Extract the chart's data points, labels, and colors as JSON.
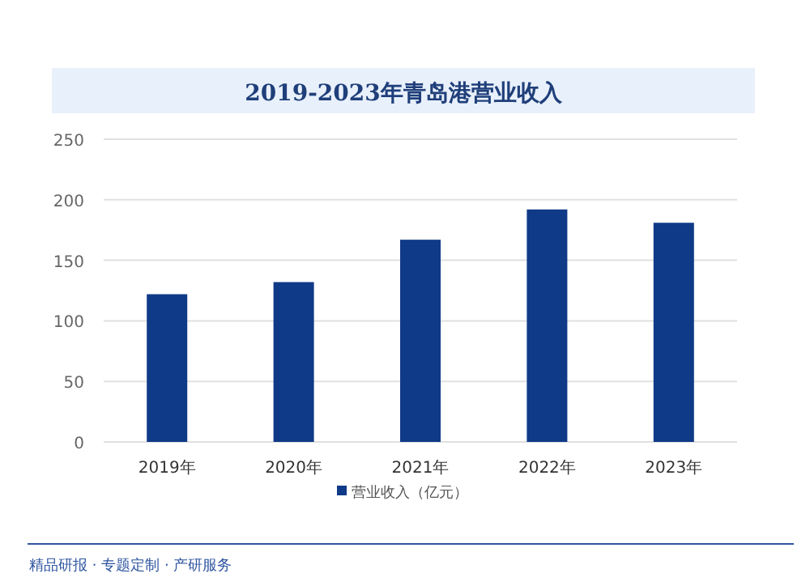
{
  "chart_data": {
    "type": "bar",
    "title": "2019-2023年青岛港营业收入",
    "categories": [
      "2019年",
      "2020年",
      "2021年",
      "2022年",
      "2023年"
    ],
    "series": [
      {
        "name": "营业收入（亿元）",
        "color": "#0f3a87",
        "values": [
          122,
          132,
          167,
          192,
          181
        ]
      }
    ],
    "ylim": [
      0,
      250
    ],
    "yticks": [
      0,
      50,
      100,
      150,
      200,
      250
    ],
    "grid": "y",
    "legend": "bottom",
    "annotations": [
      "精品研报 · 专题定制 · 产研服务"
    ]
  }
}
